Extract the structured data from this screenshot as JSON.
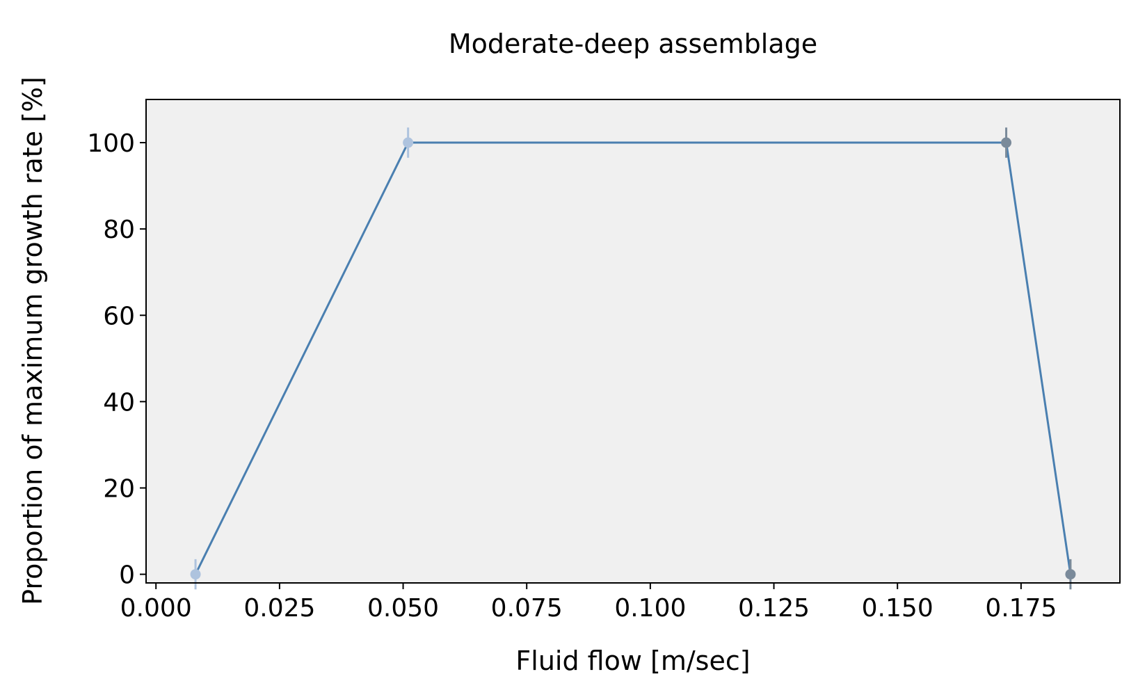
{
  "chart_data": {
    "type": "line",
    "title": "Moderate-deep assemblage",
    "xlabel": "Fluid flow [m/sec]",
    "ylabel": "Proportion of maximum growth rate [%]",
    "xlim": [
      -0.002,
      0.195
    ],
    "ylim": [
      -2,
      110
    ],
    "x_ticks": [
      0.0,
      0.025,
      0.05,
      0.075,
      0.1,
      0.125,
      0.15,
      0.175
    ],
    "x_tick_labels": [
      "0.000",
      "0.025",
      "0.050",
      "0.075",
      "0.100",
      "0.125",
      "0.150",
      "0.175"
    ],
    "y_ticks": [
      0,
      20,
      40,
      60,
      80,
      100
    ],
    "y_tick_labels": [
      "0",
      "20",
      "40",
      "60",
      "80",
      "100"
    ],
    "grid": false,
    "background": "#f0f0f0",
    "line_color": "#4a7fb0",
    "points": [
      {
        "x": 0.008,
        "y": 0,
        "err": 3.5,
        "color": "#aec3de"
      },
      {
        "x": 0.051,
        "y": 100,
        "err": 3.5,
        "color": "#aec3de"
      },
      {
        "x": 0.172,
        "y": 100,
        "err": 3.5,
        "color": "#7a8a9a"
      },
      {
        "x": 0.185,
        "y": 0,
        "err": 3.5,
        "color": "#7a8a9a"
      }
    ]
  }
}
